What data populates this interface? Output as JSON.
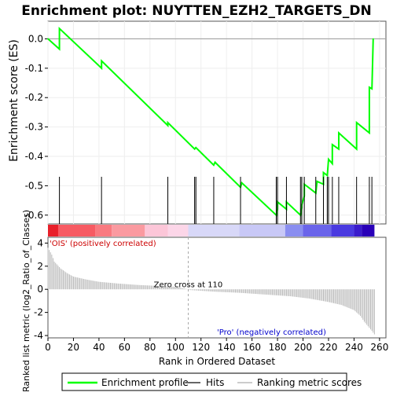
{
  "chart_data": {
    "type": "line",
    "title": "Enrichment plot: NUYTTEN_EZH2_TARGETS_DN",
    "x_axis": {
      "label": "Rank in Ordered Dataset",
      "range": [
        0,
        265
      ],
      "ticks": [
        "0",
        "20",
        "40",
        "60",
        "80",
        "100",
        "120",
        "140",
        "160",
        "180",
        "200",
        "220",
        "240",
        "260"
      ]
    },
    "top_panel": {
      "ylabel": "Enrichment score (ES)",
      "ylim": [
        -0.63,
        0.06
      ],
      "yticks": [
        "0.0",
        "-0.1",
        "-0.2",
        "-0.3",
        "-0.4",
        "-0.5",
        "-0.6"
      ],
      "grid": true,
      "series": [
        {
          "name": "Enrichment profile",
          "color": "#00ff00",
          "points": [
            [
              0,
              0.0
            ],
            [
              9,
              -0.035
            ],
            [
              9,
              0.035
            ],
            [
              42,
              -0.1
            ],
            [
              42,
              -0.075
            ],
            [
              94,
              -0.295
            ],
            [
              94,
              -0.285
            ],
            [
              115,
              -0.375
            ],
            [
              116,
              -0.37
            ],
            [
              130,
              -0.43
            ],
            [
              131,
              -0.42
            ],
            [
              151,
              -0.505
            ],
            [
              152,
              -0.49
            ],
            [
              179,
              -0.6
            ],
            [
              180,
              -0.58
            ],
            [
              180,
              -0.555
            ],
            [
              187,
              -0.58
            ],
            [
              187,
              -0.555
            ],
            [
              198,
              -0.6
            ],
            [
              199,
              -0.575
            ],
            [
              199,
              -0.565
            ],
            [
              201,
              -0.535
            ],
            [
              201,
              -0.495
            ],
            [
              210,
              -0.525
            ],
            [
              211,
              -0.485
            ],
            [
              216,
              -0.495
            ],
            [
              216,
              -0.455
            ],
            [
              219,
              -0.465
            ],
            [
              220,
              -0.41
            ],
            [
              223,
              -0.425
            ],
            [
              223,
              -0.36
            ],
            [
              228,
              -0.375
            ],
            [
              228,
              -0.32
            ],
            [
              242,
              -0.375
            ],
            [
              242,
              -0.285
            ],
            [
              252,
              -0.32
            ],
            [
              252,
              -0.165
            ],
            [
              254,
              -0.17
            ],
            [
              255,
              0.0
            ]
          ]
        }
      ]
    },
    "hits": [
      9,
      42,
      94,
      115,
      116,
      130,
      151,
      179,
      180,
      187,
      198,
      199,
      201,
      210,
      216,
      219,
      220,
      223,
      228,
      242,
      252,
      254
    ],
    "heat_bar": {
      "segments": [
        {
          "end": 8,
          "color": "#e8202a"
        },
        {
          "end": 37,
          "color": "#f75b63"
        },
        {
          "end": 50,
          "color": "#f97a80"
        },
        {
          "end": 76,
          "color": "#fa9aa0"
        },
        {
          "end": 94,
          "color": "#fcc6d8"
        },
        {
          "end": 110,
          "color": "#fcd6e8"
        },
        {
          "end": 150,
          "color": "#d8d8f8"
        },
        {
          "end": 186,
          "color": "#c8c8f6"
        },
        {
          "end": 200,
          "color": "#8a8ef0"
        },
        {
          "end": 222,
          "color": "#6a64ea"
        },
        {
          "end": 240,
          "color": "#4a3ae0"
        },
        {
          "end": 246,
          "color": "#3a1ccc"
        },
        {
          "end": 256,
          "color": "#2a00b8"
        }
      ]
    },
    "bottom_panel": {
      "ylabel": "Ranked list metric (log2_Ratio_of_Classes)",
      "ylim": [
        -4.2,
        4.5
      ],
      "yticks": [
        "4",
        "2",
        "0",
        "-2",
        "-4"
      ],
      "metric_knots": [
        [
          0,
          3.6
        ],
        [
          3,
          3.0
        ],
        [
          5,
          2.4
        ],
        [
          10,
          1.8
        ],
        [
          15,
          1.4
        ],
        [
          20,
          1.1
        ],
        [
          30,
          0.85
        ],
        [
          40,
          0.65
        ],
        [
          55,
          0.5
        ],
        [
          70,
          0.38
        ],
        [
          85,
          0.3
        ],
        [
          100,
          0.22
        ],
        [
          110,
          0.0
        ],
        [
          111,
          -0.06
        ],
        [
          130,
          -0.2
        ],
        [
          150,
          -0.3
        ],
        [
          170,
          -0.45
        ],
        [
          190,
          -0.6
        ],
        [
          205,
          -0.8
        ],
        [
          220,
          -1.1
        ],
        [
          230,
          -1.35
        ],
        [
          240,
          -1.8
        ],
        [
          245,
          -2.3
        ],
        [
          248,
          -2.8
        ],
        [
          251,
          -3.2
        ],
        [
          254,
          -3.6
        ],
        [
          256,
          -3.9
        ]
      ],
      "zero_cross_rank": 110,
      "annotations": {
        "zero_cross": "Zero cross at 110",
        "positive": "'OIS' (positively correlated)",
        "negative": "'Pro' (negatively correlated)"
      }
    },
    "legend": {
      "position": "bottom",
      "items": [
        {
          "label": "Enrichment profile",
          "color": "#00ff00"
        },
        {
          "label": "Hits",
          "color": "#666666"
        },
        {
          "label": "Ranking metric scores",
          "color": "#cccccc"
        }
      ]
    }
  }
}
